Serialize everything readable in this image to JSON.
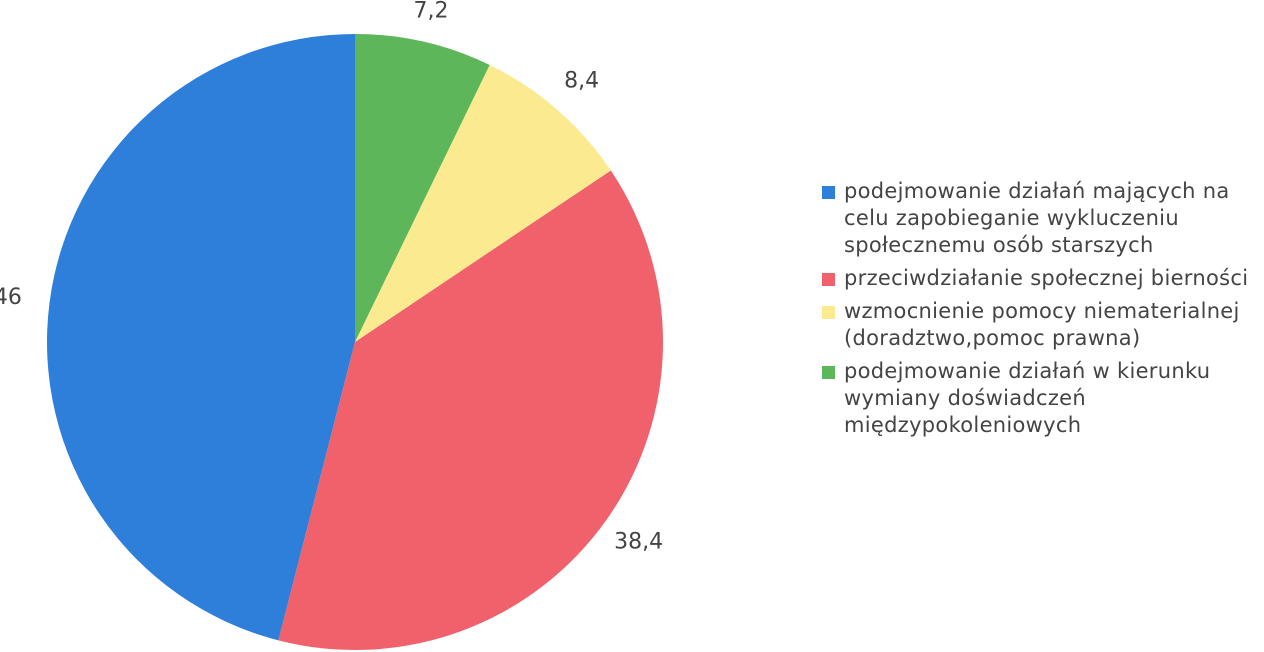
{
  "chart_data": {
    "type": "pie",
    "categories": [
      "podejmowanie działań mających na celu zapobieganie wykluczeniu społecznemu osób starszych",
      "przeciwdziałanie społecznej bierności",
      "wzmocnienie pomocy niematerialnej (doradztwo,pomoc prawna)",
      "podejmowanie działań w kierunku wymiany doświadczeń międzypokoleniowych"
    ],
    "values": [
      46,
      38.4,
      8.4,
      7.2
    ],
    "value_labels": [
      "46",
      "38,4",
      "8,4",
      "7,2"
    ],
    "colors": [
      "#2e7fd9",
      "#f0616b",
      "#fbea90",
      "#5db75a"
    ]
  }
}
